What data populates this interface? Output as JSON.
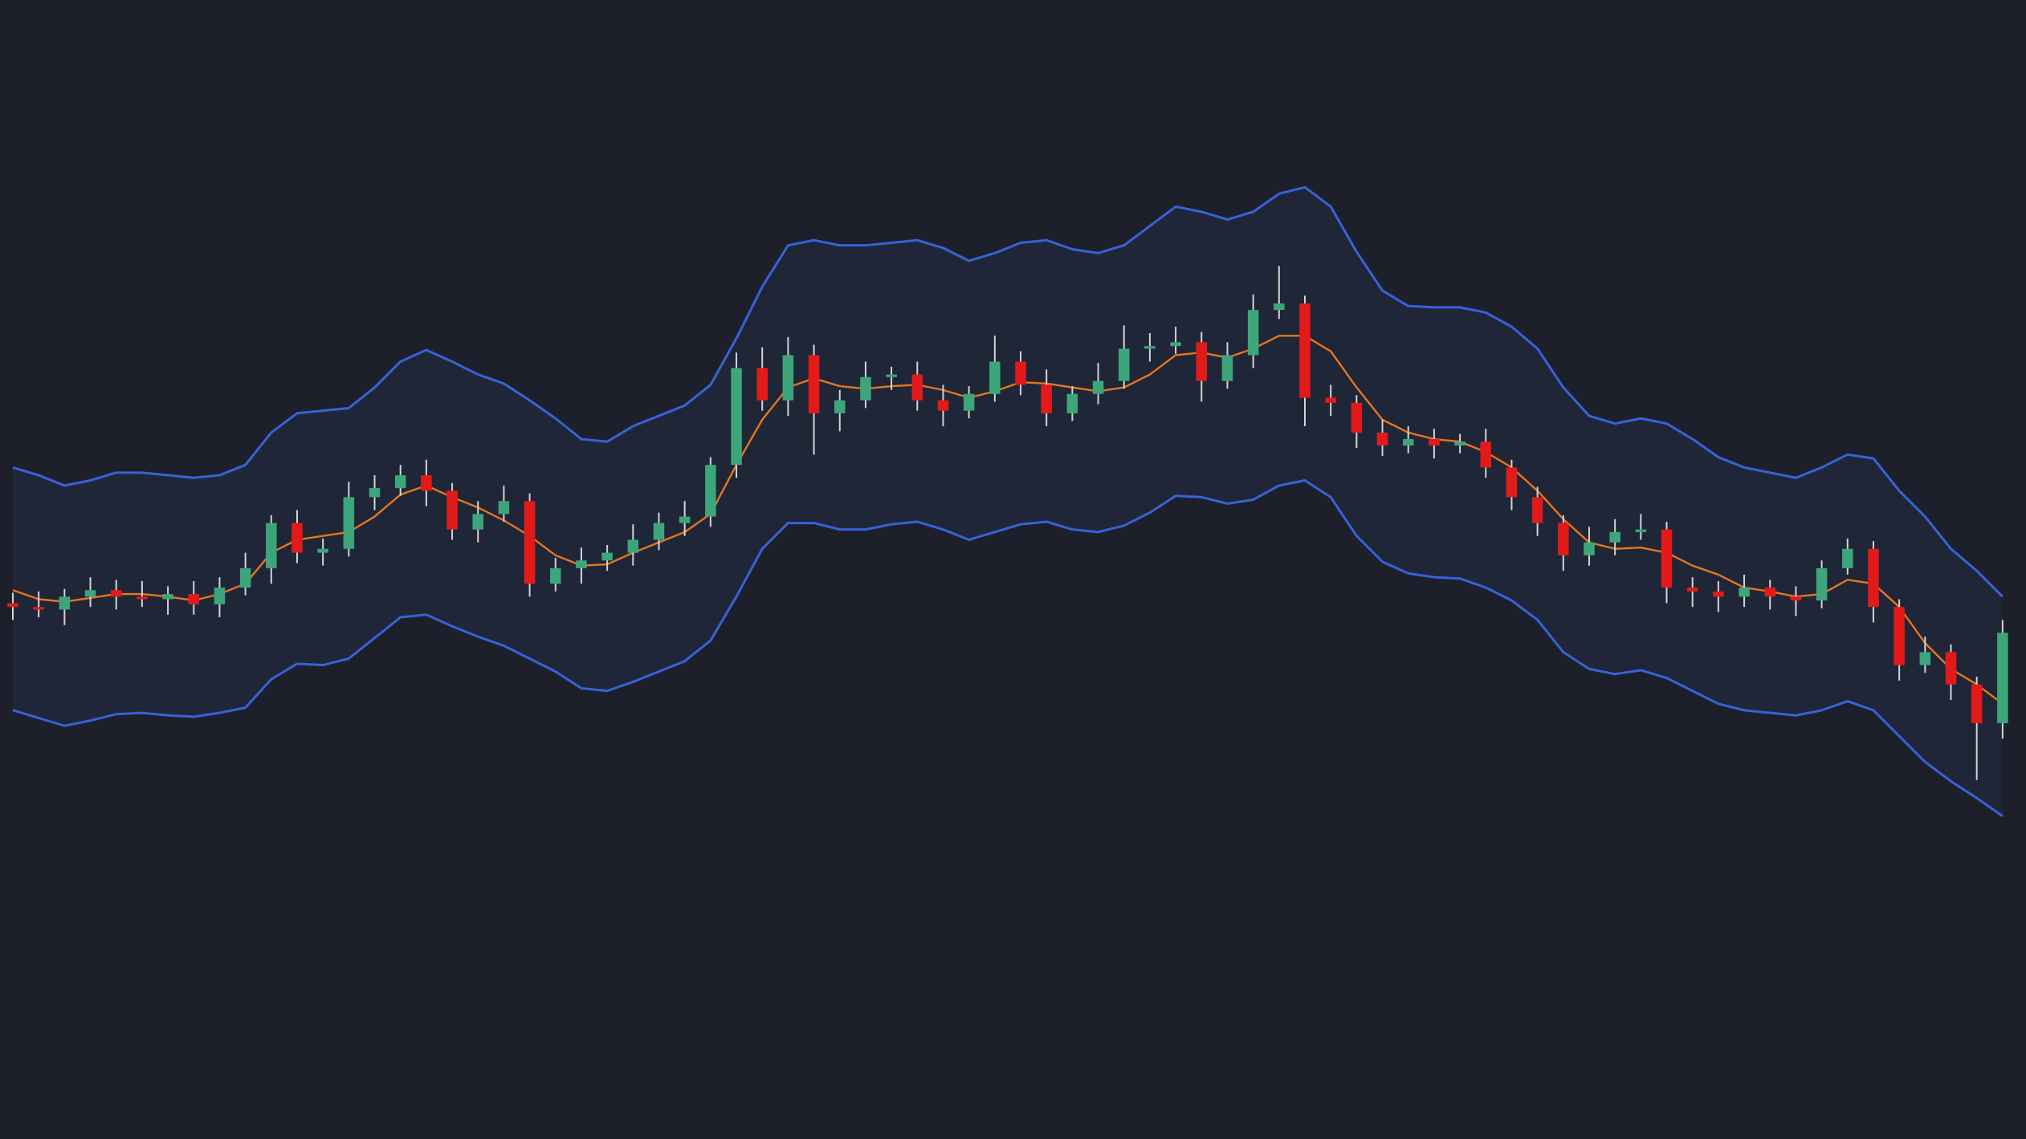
{
  "chart_data": {
    "type": "candlestick",
    "background": "#1d1f2b",
    "ylim": [
      0,
      882
    ],
    "up_color": "#3da57a",
    "down_color": "#e31a1a",
    "wick_color": "#d4d4d4",
    "open": [
      415,
      412,
      410,
      420,
      425,
      420,
      418,
      422,
      414,
      427,
      442,
      477,
      454,
      457,
      497,
      504,
      514,
      502,
      472,
      484,
      494,
      430,
      442,
      448,
      454,
      464,
      477,
      482,
      522,
      597,
      572,
      607,
      562,
      572,
      590,
      592,
      572,
      564,
      577,
      602,
      584,
      562,
      577,
      587,
      612,
      614,
      617,
      587,
      607,
      642,
      647,
      574,
      570,
      547,
      537,
      542,
      537,
      540,
      520,
      497,
      477,
      452,
      462,
      470,
      472,
      427,
      424,
      420,
      427,
      420,
      417,
      442,
      457,
      412,
      367,
      377,
      352,
      322
    ],
    "high": [
      423,
      424,
      426,
      435,
      433,
      432,
      428,
      432,
      435,
      454,
      483,
      487,
      465,
      509,
      514,
      522,
      526,
      508,
      494,
      506,
      500,
      450,
      458,
      460,
      476,
      485,
      494,
      528,
      609,
      613,
      621,
      615,
      580,
      602,
      598,
      602,
      584,
      583,
      622,
      610,
      596,
      583,
      601,
      630,
      624,
      629,
      625,
      617,
      654,
      676,
      653,
      584,
      576,
      557,
      552,
      550,
      546,
      550,
      526,
      505,
      483,
      474,
      480,
      484,
      478,
      435,
      432,
      437,
      433,
      428,
      448,
      465,
      463,
      418,
      389,
      383,
      358,
      402
    ],
    "low": [
      402,
      404,
      398,
      412,
      410,
      412,
      406,
      406,
      404,
      421,
      430,
      446,
      444,
      451,
      487,
      498,
      490,
      464,
      462,
      478,
      420,
      424,
      430,
      440,
      444,
      456,
      467,
      474,
      512,
      564,
      560,
      530,
      548,
      566,
      580,
      564,
      552,
      558,
      571,
      576,
      552,
      556,
      569,
      581,
      602,
      608,
      571,
      581,
      597,
      635,
      552,
      560,
      535,
      529,
      531,
      527,
      531,
      512,
      487,
      467,
      440,
      444,
      452,
      464,
      415,
      412,
      408,
      412,
      410,
      405,
      411,
      437,
      400,
      355,
      361,
      340,
      278,
      310
    ],
    "close": [
      412,
      410,
      420,
      425,
      420,
      418,
      422,
      414,
      427,
      442,
      477,
      454,
      457,
      497,
      504,
      514,
      502,
      472,
      484,
      494,
      430,
      442,
      448,
      454,
      464,
      477,
      482,
      522,
      597,
      572,
      607,
      562,
      572,
      590,
      592,
      572,
      564,
      577,
      602,
      584,
      562,
      577,
      587,
      612,
      614,
      617,
      587,
      607,
      642,
      647,
      574,
      570,
      547,
      537,
      542,
      537,
      540,
      520,
      497,
      477,
      452,
      462,
      470,
      472,
      427,
      424,
      420,
      427,
      420,
      417,
      442,
      457,
      412,
      367,
      377,
      352,
      322,
      392
    ],
    "bands": {
      "fill": "#1f2638",
      "upper": {
        "color": "#3763d8",
        "values": [
          520,
          514,
          506,
          510,
          516,
          516,
          514,
          512,
          514,
          522,
          547,
          562,
          564,
          566,
          582,
          602,
          611,
          602,
          592,
          585,
          572,
          558,
          542,
          540,
          552,
          560,
          568,
          584,
          620,
          660,
          692,
          696,
          692,
          692,
          694,
          696,
          690,
          680,
          686,
          694,
          696,
          689,
          686,
          692,
          707,
          722,
          718,
          712,
          718,
          732,
          737,
          722,
          687,
          657,
          645,
          644,
          644,
          640,
          629,
          612,
          582,
          560,
          554,
          558,
          554,
          542,
          528,
          520,
          516,
          512,
          520,
          530,
          527,
          502,
          482,
          457,
          440,
          420
        ]
      },
      "middle": {
        "color": "#e6761e",
        "values": [
          425,
          418,
          416,
          419,
          422,
          422,
          420,
          417,
          422,
          430,
          454,
          464,
          467,
          470,
          482,
          499,
          506,
          497,
          489,
          479,
          467,
          452,
          444,
          445,
          454,
          462,
          470,
          484,
          522,
          557,
          582,
          589,
          583,
          581,
          583,
          584,
          580,
          574,
          579,
          586,
          585,
          582,
          579,
          582,
          592,
          607,
          609,
          605,
          612,
          622,
          622,
          610,
          582,
          557,
          547,
          542,
          540,
          532,
          520,
          502,
          480,
          462,
          457,
          458,
          454,
          444,
          437,
          427,
          424,
          420,
          422,
          433,
          430,
          412,
          384,
          364,
          352,
          337
        ]
      },
      "lower": {
        "color": "#3763d8",
        "values": [
          332,
          326,
          320,
          324,
          329,
          330,
          328,
          327,
          330,
          334,
          356,
          368,
          367,
          372,
          388,
          404,
          406,
          397,
          389,
          382,
          372,
          362,
          349,
          347,
          354,
          362,
          370,
          386,
          420,
          457,
          477,
          477,
          472,
          472,
          476,
          478,
          472,
          464,
          470,
          476,
          478,
          472,
          470,
          475,
          485,
          498,
          497,
          492,
          495,
          506,
          510,
          497,
          467,
          447,
          438,
          435,
          434,
          427,
          417,
          402,
          377,
          364,
          360,
          363,
          357,
          347,
          337,
          332,
          330,
          328,
          332,
          339,
          332,
          312,
          292,
          277,
          264,
          250
        ]
      }
    }
  }
}
